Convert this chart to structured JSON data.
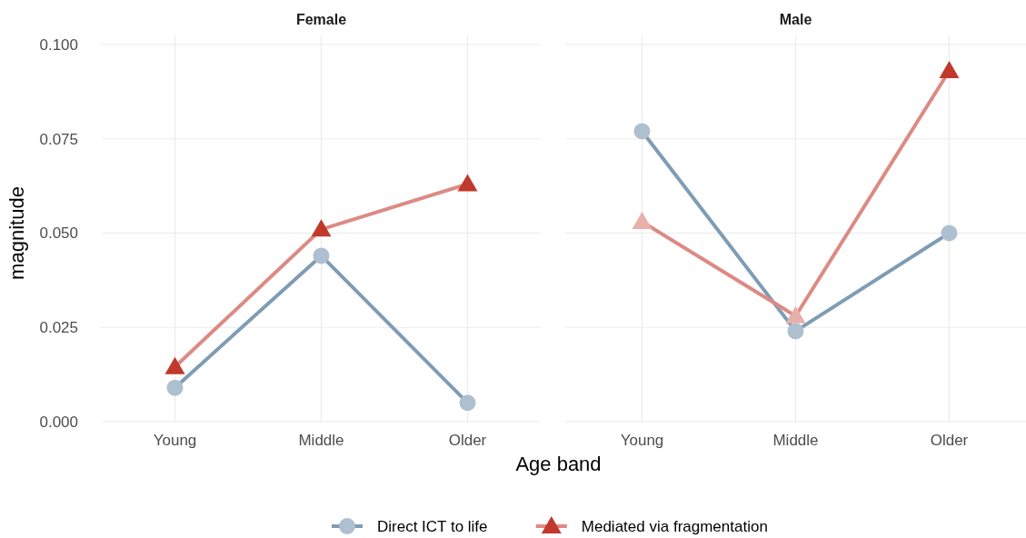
{
  "chart_data": [
    {
      "type": "line",
      "title": "Female",
      "xlabel": "Age band",
      "ylabel": "magnitude",
      "categories": [
        "Young",
        "Middle",
        "Older"
      ],
      "ylim": [
        0,
        0.1
      ],
      "yticks": [
        {
          "value": 0,
          "label": "0.000"
        },
        {
          "value": 0.025,
          "label": "0.025"
        },
        {
          "value": 0.05,
          "label": "0.050"
        },
        {
          "value": 0.075,
          "label": "0.075"
        },
        {
          "value": 0.1,
          "label": "0.100"
        }
      ],
      "grid": true,
      "legend": "bottom",
      "series": [
        {
          "name": "Direct ICT to life",
          "color": "#7f9cb5",
          "marker": "circle",
          "colors": [
            "#aebfd0",
            "#aebfd0",
            "#aebfd0"
          ],
          "values": [
            0.009,
            0.044,
            0.005
          ]
        },
        {
          "name": "Mediated via fragmentation",
          "color": "#dd8a84",
          "marker": "triangle",
          "colors": [
            "#c0392b",
            "#c0392b",
            "#c0392b"
          ],
          "values": [
            0.0145,
            0.051,
            0.063
          ]
        }
      ]
    },
    {
      "type": "line",
      "title": "Male",
      "categories": [
        "Young",
        "Middle",
        "Older"
      ],
      "ylim": [
        0,
        0.1
      ],
      "yticks": [
        0,
        0.025,
        0.05,
        0.075,
        0.1
      ],
      "tick_labels": "x",
      "grid": true,
      "series": [
        {
          "color": "#7f9cb5",
          "marker": "circle",
          "colors": [
            "#aebfd0",
            "#aebfd0",
            "#aebfd0"
          ],
          "values": [
            0.077,
            0.024,
            0.05
          ]
        },
        {
          "color": "#dd8a84",
          "marker": "triangle",
          "colors": [
            "#e8b0ab",
            "#e8b0ab",
            "#c0392b"
          ],
          "values": [
            0.053,
            0.028,
            0.093
          ]
        }
      ]
    }
  ]
}
